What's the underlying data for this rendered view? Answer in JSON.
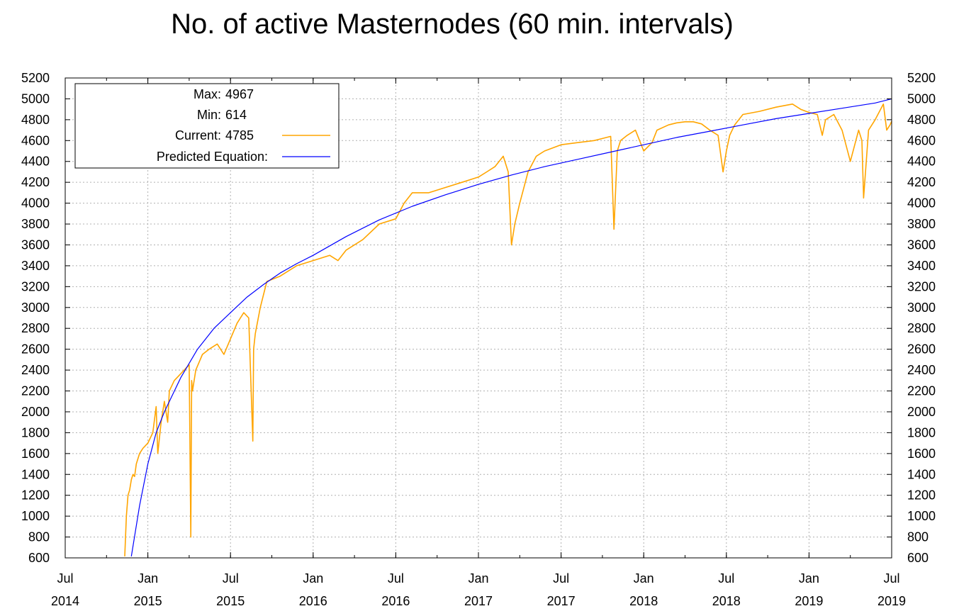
{
  "chart_data": {
    "type": "line",
    "title": "No. of active Masternodes (60 min. intervals)",
    "xlabel": "",
    "ylabel": "",
    "ylim": [
      600,
      5200
    ],
    "yticks": [
      600,
      800,
      1000,
      1200,
      1400,
      1600,
      1800,
      2000,
      2200,
      2400,
      2600,
      2800,
      3000,
      3200,
      3400,
      3600,
      3800,
      4000,
      4200,
      4400,
      4600,
      4800,
      5000,
      5200
    ],
    "xlim": [
      2014.5,
      2019.5
    ],
    "xticks": [
      {
        "t": 2014.5,
        "month": "Jul",
        "year": "2014"
      },
      {
        "t": 2015.0,
        "month": "Jan",
        "year": "2015"
      },
      {
        "t": 2015.5,
        "month": "Jul",
        "year": "2015"
      },
      {
        "t": 2016.0,
        "month": "Jan",
        "year": "2016"
      },
      {
        "t": 2016.5,
        "month": "Jul",
        "year": "2016"
      },
      {
        "t": 2017.0,
        "month": "Jan",
        "year": "2017"
      },
      {
        "t": 2017.5,
        "month": "Jul",
        "year": "2017"
      },
      {
        "t": 2018.0,
        "month": "Jan",
        "year": "2018"
      },
      {
        "t": 2018.5,
        "month": "Jul",
        "year": "2018"
      },
      {
        "t": 2019.0,
        "month": "Jan",
        "year": "2019"
      },
      {
        "t": 2019.5,
        "month": "Jul",
        "year": "2019"
      }
    ],
    "grid": true,
    "legend_position": "top-left",
    "legend": {
      "max_label": "Max:",
      "max_value": "4967",
      "min_label": "Min:",
      "min_value": "614",
      "current_label": "Current:",
      "current_value": "4785",
      "predicted_label": "Predicted Equation:"
    },
    "series": [
      {
        "name": "Current",
        "color": "#ffa500",
        "x": [
          2014.86,
          2014.87,
          2014.88,
          2014.89,
          2014.9,
          2014.91,
          2014.92,
          2014.93,
          2014.95,
          2014.97,
          2015.0,
          2015.03,
          2015.05,
          2015.06,
          2015.08,
          2015.1,
          2015.12,
          2015.13,
          2015.16,
          2015.19,
          2015.22,
          2015.25,
          2015.26,
          2015.265,
          2015.27,
          2015.29,
          2015.33,
          2015.37,
          2015.42,
          2015.46,
          2015.5,
          2015.54,
          2015.58,
          2015.61,
          2015.635,
          2015.64,
          2015.65,
          2015.68,
          2015.72,
          2015.8,
          2015.9,
          2016.0,
          2016.1,
          2016.15,
          2016.2,
          2016.3,
          2016.4,
          2016.5,
          2016.55,
          2016.6,
          2016.7,
          2016.8,
          2016.9,
          2017.0,
          2017.05,
          2017.1,
          2017.15,
          2017.18,
          2017.2,
          2017.22,
          2017.25,
          2017.3,
          2017.35,
          2017.4,
          2017.5,
          2017.6,
          2017.7,
          2017.75,
          2017.8,
          2017.82,
          2017.84,
          2017.86,
          2017.9,
          2017.95,
          2018.0,
          2018.05,
          2018.08,
          2018.15,
          2018.2,
          2018.25,
          2018.3,
          2018.35,
          2018.4,
          2018.45,
          2018.48,
          2018.5,
          2018.52,
          2018.55,
          2018.6,
          2018.7,
          2018.8,
          2018.9,
          2018.95,
          2019.0,
          2019.05,
          2019.08,
          2019.1,
          2019.15,
          2019.2,
          2019.25,
          2019.3,
          2019.32,
          2019.33,
          2019.36,
          2019.4,
          2019.45,
          2019.47,
          2019.49,
          2019.5
        ],
        "values": [
          614,
          1000,
          1200,
          1250,
          1350,
          1400,
          1380,
          1500,
          1600,
          1650,
          1700,
          1800,
          2050,
          1600,
          1900,
          2100,
          1900,
          2200,
          2300,
          2350,
          2400,
          2450,
          800,
          2300,
          2200,
          2400,
          2550,
          2600,
          2650,
          2550,
          2700,
          2850,
          2950,
          2900,
          1720,
          2600,
          2750,
          3000,
          3250,
          3300,
          3400,
          3450,
          3500,
          3450,
          3550,
          3650,
          3800,
          3850,
          4000,
          4100,
          4100,
          4150,
          4200,
          4250,
          4300,
          4350,
          4450,
          4300,
          3600,
          3800,
          4000,
          4300,
          4450,
          4500,
          4560,
          4580,
          4600,
          4620,
          4640,
          3750,
          4500,
          4600,
          4650,
          4700,
          4500,
          4580,
          4700,
          4750,
          4770,
          4780,
          4780,
          4760,
          4700,
          4650,
          4300,
          4500,
          4650,
          4750,
          4850,
          4880,
          4920,
          4950,
          4900,
          4870,
          4850,
          4650,
          4800,
          4850,
          4700,
          4400,
          4700,
          4600,
          4050,
          4700,
          4800,
          4950,
          4700,
          4750,
          4785
        ]
      },
      {
        "name": "Predicted Equation",
        "color": "#0000ff",
        "x": [
          2014.9,
          2014.95,
          2015.0,
          2015.05,
          2015.1,
          2015.2,
          2015.3,
          2015.4,
          2015.5,
          2015.6,
          2015.7,
          2015.8,
          2015.9,
          2016.0,
          2016.2,
          2016.4,
          2016.6,
          2016.8,
          2017.0,
          2017.2,
          2017.4,
          2017.6,
          2017.8,
          2018.0,
          2018.2,
          2018.4,
          2018.6,
          2018.8,
          2019.0,
          2019.2,
          2019.4,
          2019.5
        ],
        "values": [
          614,
          1100,
          1500,
          1800,
          2000,
          2330,
          2600,
          2800,
          2950,
          3100,
          3220,
          3330,
          3420,
          3500,
          3680,
          3840,
          3970,
          4080,
          4180,
          4270,
          4350,
          4420,
          4490,
          4560,
          4630,
          4690,
          4750,
          4810,
          4860,
          4910,
          4960,
          5000
        ]
      }
    ]
  }
}
